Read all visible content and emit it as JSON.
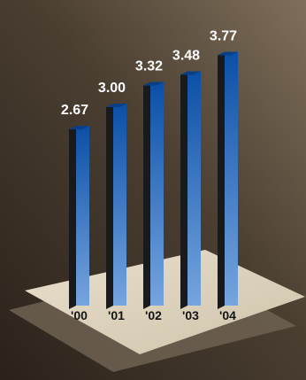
{
  "chart_data": {
    "type": "bar",
    "title": "",
    "xlabel": "",
    "ylabel": "",
    "categories": [
      "'00",
      "'01",
      "'02",
      "'03",
      "'04"
    ],
    "values": [
      2.67,
      3.0,
      3.32,
      3.48,
      3.77
    ],
    "value_labels": [
      "2.67",
      "3.00",
      "3.32",
      "3.48",
      "3.77"
    ],
    "grid": false,
    "legend": "none",
    "style": "3d",
    "colors": {
      "background_dark": "#2b231b",
      "background_light": "#7a6a56",
      "bar_top": "#0d52a8",
      "bar_bottom": "#6f9fdd",
      "bar_side": "#1a1a1a",
      "floor": "#ddd2bd",
      "floor_shadow": "#6e6152"
    }
  }
}
